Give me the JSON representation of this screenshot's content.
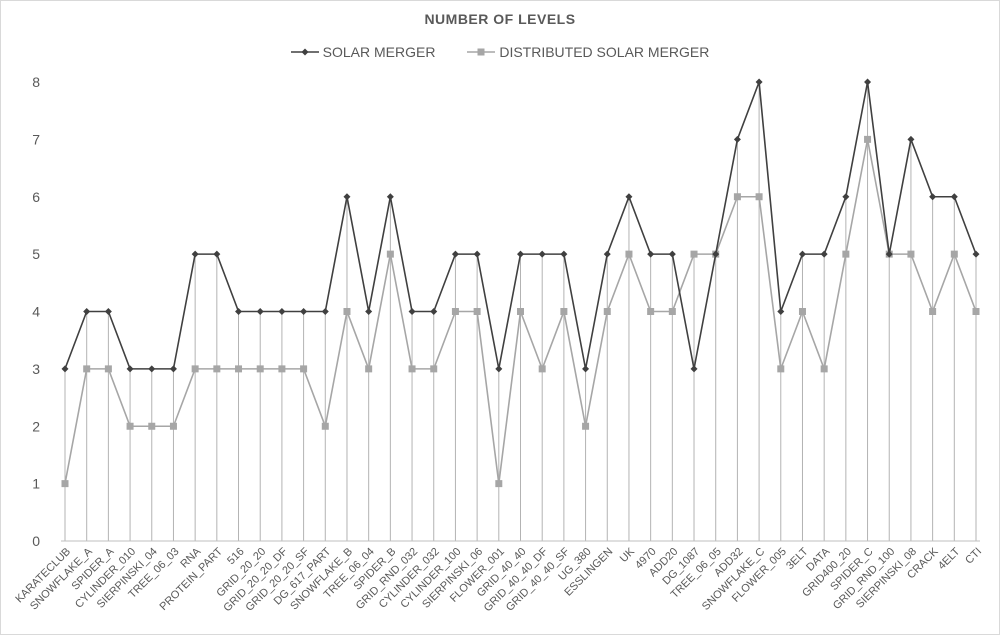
{
  "chart_data": {
    "type": "line",
    "title": "NUMBER OF LEVELS",
    "xlabel": "",
    "ylabel": "",
    "ylim": [
      0,
      8
    ],
    "yticks": [
      "0",
      "1",
      "2",
      "3",
      "4",
      "5",
      "6",
      "7",
      "8"
    ],
    "grid": "vertical drop lines",
    "legend_position": "top",
    "categories": [
      "KARATECLUB",
      "SNOWFLAKE_A",
      "SPIDER_A",
      "CYLINDER_010",
      "SIERPINSKI_04",
      "TREE_06_03",
      "RNA",
      "PROTEIN_PART",
      "516",
      "GRID_20_20",
      "GRID_20_20_DF",
      "GRID_20_20_SF",
      "DG_617_PART",
      "SNOWFLAKE_B",
      "TREE_06_04",
      "SPIDER_B",
      "GRID_RND_032",
      "CYLINDER_032",
      "CYLINDER_100",
      "SIERPINSKI_06",
      "FLOWER_001",
      "GRID_40_40",
      "GRID_40_40_DF",
      "GRID_40_40_SF",
      "UG_380",
      "ESSLINGEN",
      "UK",
      "4970",
      "ADD20",
      "DG_1087",
      "TREE_06_05",
      "ADD32",
      "SNOWFLAKE_C",
      "FLOWER_005",
      "3ELT",
      "DATA",
      "GRID400_20",
      "SPIDER_C",
      "GRID_RND_100",
      "SIERPINSKI_08",
      "CRACK",
      "4ELT",
      "CTI"
    ],
    "series": [
      {
        "name": "SOLAR MERGER",
        "color": "#404040",
        "marker": "diamond",
        "values": [
          3,
          4,
          4,
          3,
          3,
          3,
          5,
          5,
          4,
          4,
          4,
          4,
          4,
          6,
          4,
          6,
          4,
          4,
          5,
          5,
          3,
          5,
          5,
          5,
          3,
          5,
          6,
          5,
          5,
          3,
          5,
          7,
          8,
          4,
          5,
          5,
          6,
          8,
          5,
          7,
          6,
          6,
          5
        ]
      },
      {
        "name": "DISTRIBUTED SOLAR MERGER",
        "color": "#a6a6a6",
        "marker": "square",
        "values": [
          1,
          3,
          3,
          2,
          2,
          2,
          3,
          3,
          3,
          3,
          3,
          3,
          2,
          4,
          3,
          5,
          3,
          3,
          4,
          4,
          1,
          4,
          3,
          4,
          2,
          4,
          5,
          4,
          4,
          5,
          5,
          6,
          6,
          3,
          4,
          3,
          5,
          7,
          5,
          5,
          4,
          5,
          4
        ]
      }
    ]
  }
}
